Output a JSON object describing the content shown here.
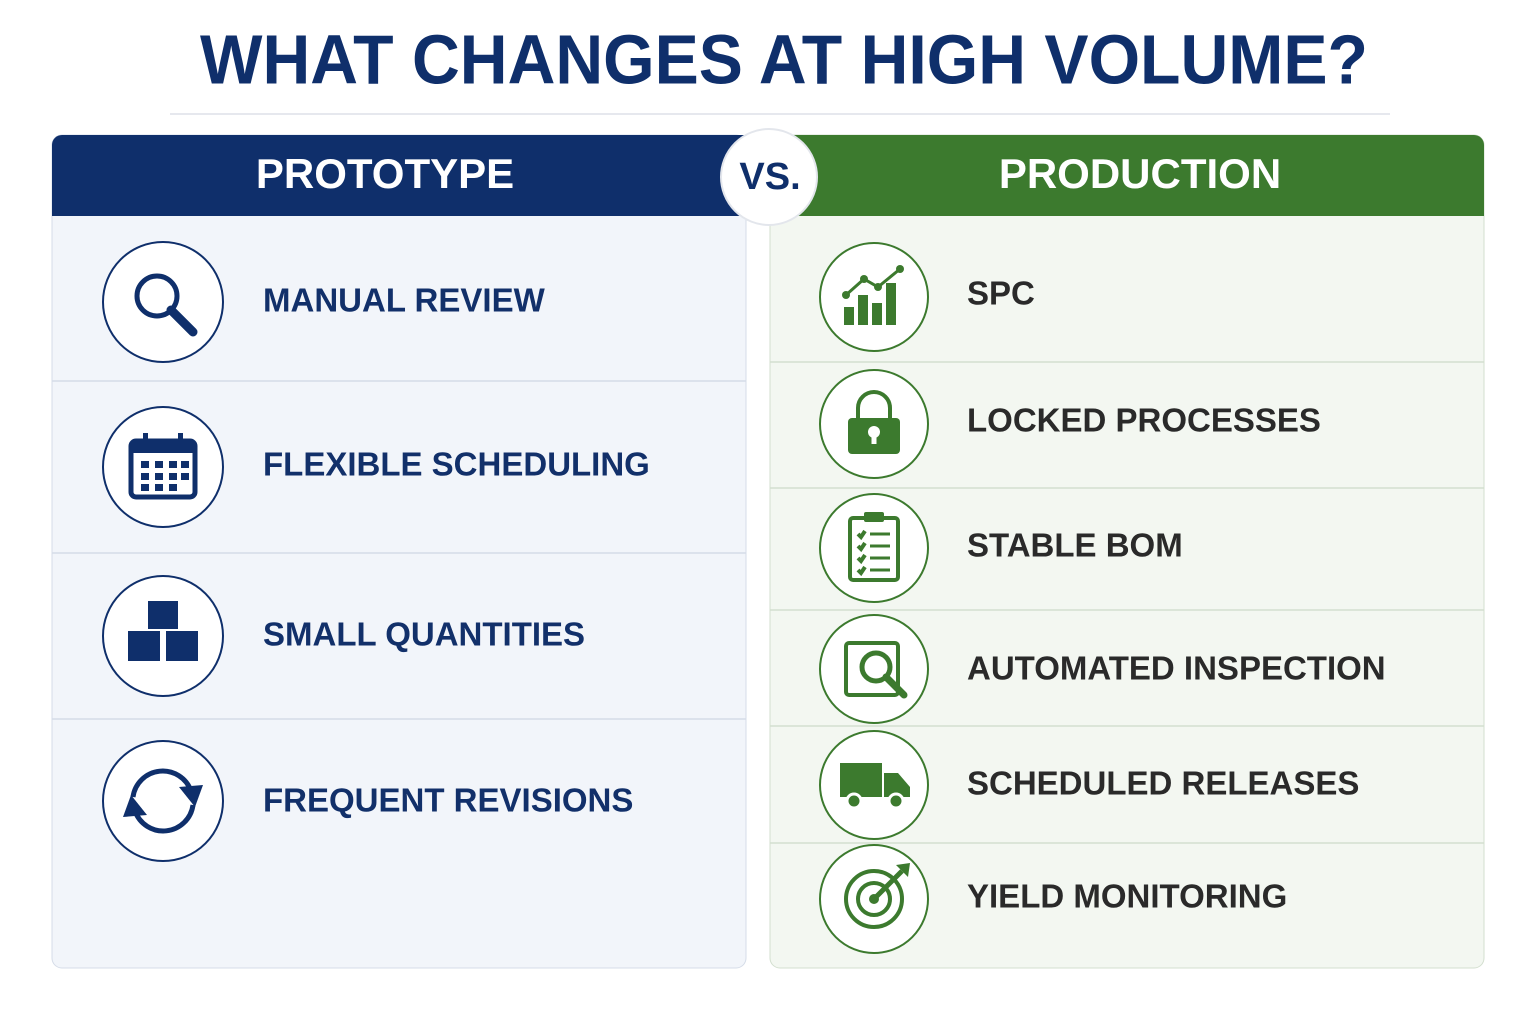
{
  "title": "WHAT CHANGES AT HIGH VOLUME?",
  "vs": "VS.",
  "left": {
    "header": "PROTOTYPE",
    "items": [
      "MANUAL REVIEW",
      "FLEXIBLE SCHEDULING",
      "SMALL QUANTITIES",
      "FREQUENT REVISIONS"
    ]
  },
  "right": {
    "header": "PRODUCTION",
    "items": [
      "SPC",
      "LOCKED PROCESSES",
      "STABLE BOM",
      "AUTOMATED INSPECTION",
      "SCHEDULED RELEASES",
      "YIELD MONITORING"
    ]
  }
}
